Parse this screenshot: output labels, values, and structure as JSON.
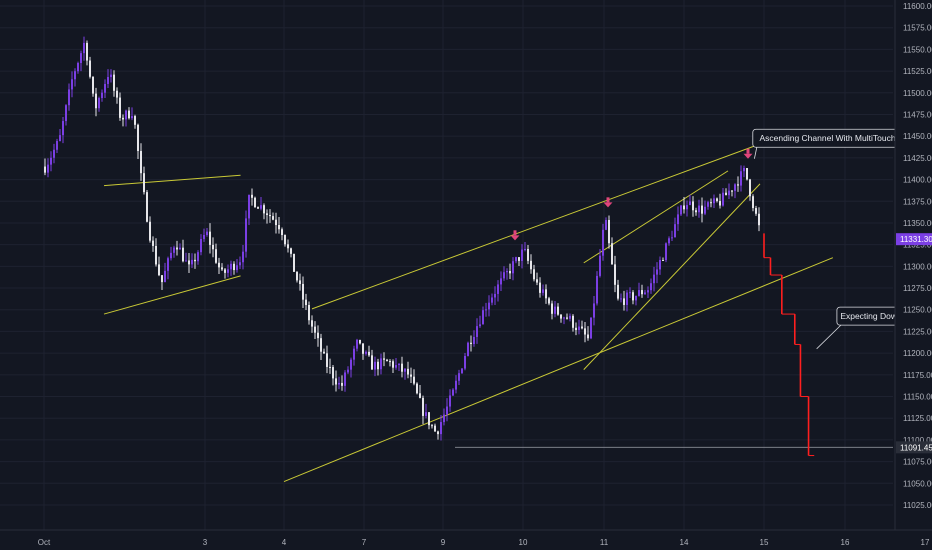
{
  "chart_data": {
    "type": "candlestick",
    "colors": {
      "background": "#131722",
      "grid": "#1e2230",
      "bull": "#7b3fe4",
      "bear": "#e6e6ea",
      "trendline": "#c9c936",
      "marker": "#e0457b",
      "projection": "#ff1f1f",
      "current_price_bg": "#7b3fe4",
      "level_price_bg": "#2a2e39"
    },
    "x_ticks": [
      {
        "label": "Oct",
        "day": 0
      },
      {
        "label": "3",
        "day": 2
      },
      {
        "label": "4",
        "day": 3
      },
      {
        "label": "7",
        "day": 4
      },
      {
        "label": "9",
        "day": 5
      },
      {
        "label": "10",
        "day": 6
      },
      {
        "label": "11",
        "day": 7
      },
      {
        "label": "14",
        "day": 8
      },
      {
        "label": "15",
        "day": 9
      },
      {
        "label": "16",
        "day": 10
      },
      {
        "label": "17",
        "day": 11
      }
    ],
    "y_ticks": [
      "11600.00",
      "11575.00",
      "11550.00",
      "11525.00",
      "11500.00",
      "11475.00",
      "11450.00",
      "11425.00",
      "11400.00",
      "11375.00",
      "11350.00",
      "11325.00",
      "11300.00",
      "11275.00",
      "11250.00",
      "11225.00",
      "11200.00",
      "11175.00",
      "11150.00",
      "11125.00",
      "11100.00",
      "11075.00",
      "11050.00",
      "11025.00"
    ],
    "ylim": [
      11000,
      11612
    ],
    "current_price": {
      "label": "11331.30",
      "value": 11331.3
    },
    "level": {
      "label": "11091.45",
      "value": 11091.45,
      "from_day": 5.15
    },
    "path": [
      {
        "day": 0.0,
        "price": 11415
      },
      {
        "day": 0.18,
        "price": 11445
      },
      {
        "day": 0.35,
        "price": 11520
      },
      {
        "day": 0.5,
        "price": 11560
      },
      {
        "day": 0.62,
        "price": 11480
      },
      {
        "day": 0.8,
        "price": 11525
      },
      {
        "day": 0.95,
        "price": 11470
      },
      {
        "day": 1.1,
        "price": 11480
      },
      {
        "day": 1.2,
        "price": 11400
      },
      {
        "day": 1.32,
        "price": 11330
      },
      {
        "day": 1.45,
        "price": 11280
      },
      {
        "day": 1.62,
        "price": 11330
      },
      {
        "day": 1.8,
        "price": 11295
      },
      {
        "day": 2.0,
        "price": 11340
      },
      {
        "day": 2.2,
        "price": 11290
      },
      {
        "day": 2.45,
        "price": 11310
      },
      {
        "day": 2.55,
        "price": 11380
      },
      {
        "day": 2.75,
        "price": 11365
      },
      {
        "day": 2.95,
        "price": 11345
      },
      {
        "day": 3.1,
        "price": 11300
      },
      {
        "day": 3.3,
        "price": 11240
      },
      {
        "day": 3.5,
        "price": 11190
      },
      {
        "day": 3.7,
        "price": 11160
      },
      {
        "day": 3.9,
        "price": 11210
      },
      {
        "day": 4.1,
        "price": 11185
      },
      {
        "day": 4.3,
        "price": 11190
      },
      {
        "day": 4.55,
        "price": 11175
      },
      {
        "day": 4.75,
        "price": 11130
      },
      {
        "day": 4.9,
        "price": 11108
      },
      {
        "day": 5.1,
        "price": 11150
      },
      {
        "day": 5.3,
        "price": 11210
      },
      {
        "day": 5.55,
        "price": 11260
      },
      {
        "day": 5.85,
        "price": 11300
      },
      {
        "day": 6.0,
        "price": 11318
      },
      {
        "day": 6.15,
        "price": 11280
      },
      {
        "day": 6.35,
        "price": 11250
      },
      {
        "day": 6.55,
        "price": 11240
      },
      {
        "day": 6.8,
        "price": 11215
      },
      {
        "day": 7.0,
        "price": 11355
      },
      {
        "day": 7.15,
        "price": 11260
      },
      {
        "day": 7.35,
        "price": 11265
      },
      {
        "day": 7.55,
        "price": 11275
      },
      {
        "day": 7.8,
        "price": 11330
      },
      {
        "day": 8.0,
        "price": 11375
      },
      {
        "day": 8.2,
        "price": 11365
      },
      {
        "day": 8.45,
        "price": 11375
      },
      {
        "day": 8.75,
        "price": 11410
      },
      {
        "day": 8.95,
        "price": 11335
      }
    ],
    "projection": [
      {
        "day": 9.0,
        "price": 11338
      },
      {
        "day": 9.08,
        "price": 11310
      },
      {
        "day": 9.22,
        "price": 11290
      },
      {
        "day": 9.38,
        "price": 11245
      },
      {
        "day": 9.45,
        "price": 11210
      },
      {
        "day": 9.55,
        "price": 11150
      },
      {
        "day": 9.62,
        "price": 11082
      }
    ],
    "trendlines": [
      {
        "d1": 0.75,
        "p1": 11393,
        "d2": 2.45,
        "p2": 11405
      },
      {
        "d1": 0.75,
        "p1": 11245,
        "d2": 2.45,
        "p2": 11289
      },
      {
        "d1": 3.35,
        "p1": 11251,
        "d2": 8.92,
        "p2": 11440
      },
      {
        "d1": 3.0,
        "p1": 11052,
        "d2": 9.85,
        "p2": 11310
      },
      {
        "d1": 6.75,
        "p1": 11181,
        "d2": 8.95,
        "p2": 11395
      },
      {
        "d1": 6.75,
        "p1": 11304,
        "d2": 8.55,
        "p2": 11410
      }
    ],
    "markers": [
      {
        "day": 5.9,
        "price": 11330
      },
      {
        "day": 7.05,
        "price": 11368
      },
      {
        "day": 8.8,
        "price": 11424
      }
    ],
    "annotations": [
      {
        "text": "Ascending Channel With MultiTouch Confirmation",
        "box_day": 8.86,
        "box_price": 11458,
        "tip_day": 8.88,
        "tip_price": 11424
      },
      {
        "text": "Expecting Downside Move",
        "box_day": 9.9,
        "box_price": 11253,
        "tip_day": 9.65,
        "tip_price": 11205
      }
    ]
  }
}
